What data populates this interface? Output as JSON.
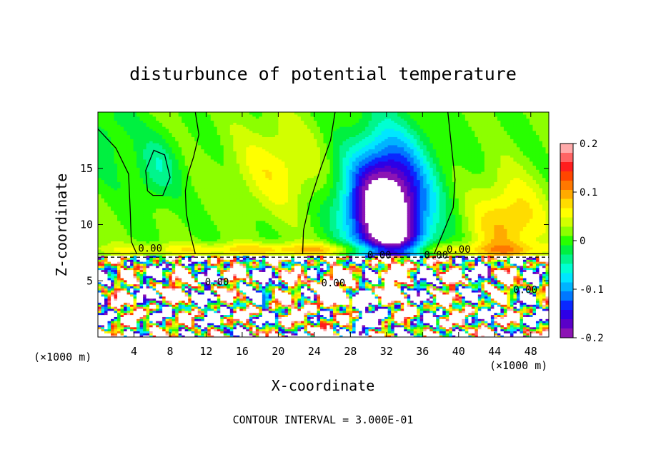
{
  "chart_data": {
    "type": "heatmap",
    "title": "disturbunce of potential temperature",
    "xlabel": "X-coordinate",
    "ylabel": "Z-coordinate",
    "x_unit": "(×1000 m)",
    "y_unit": "(×1000 m)",
    "x_ticks": [
      "4",
      "8",
      "12",
      "16",
      "20",
      "24",
      "28",
      "32",
      "36",
      "40",
      "44",
      "48"
    ],
    "y_ticks": [
      "5",
      "10",
      "15"
    ],
    "xlim": [
      0,
      50
    ],
    "ylim": [
      0,
      20
    ],
    "colorbar": {
      "range": [
        -0.2,
        0.2
      ],
      "tick_labels": [
        "0.2",
        "0.1",
        "0",
        "-0.1",
        "-0.2"
      ],
      "colors": [
        "#8c14b4",
        "#5a00c8",
        "#2d00e6",
        "#0a28ff",
        "#0078ff",
        "#00b4ff",
        "#00e6ff",
        "#00ffd2",
        "#00f58c",
        "#00f040",
        "#28ff00",
        "#8cff00",
        "#d2ff00",
        "#ffff00",
        "#ffdc00",
        "#ffaa00",
        "#ff7800",
        "#ff4600",
        "#ff1e1e",
        "#ff6464",
        "#ffaaaa"
      ]
    },
    "contour_labels": [
      "0.00",
      "0.00",
      "0.00",
      "0.00",
      "0.00",
      "0.00",
      "0.00"
    ],
    "footer": "CONTOUR INTERVAL = 3.000E-01"
  }
}
